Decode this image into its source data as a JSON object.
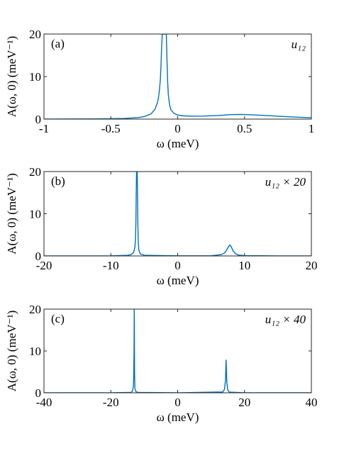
{
  "chart_data": [
    {
      "type": "line",
      "panel": "(a)",
      "annotation": "u₁₂",
      "xlabel": "ω (meV)",
      "ylabel": "A(ω, 0) (meV⁻¹)",
      "xlim": [
        -1,
        1
      ],
      "ylim": [
        0,
        20
      ],
      "xticks": [
        "-1",
        "-0.5",
        "0",
        "0.5",
        "1"
      ],
      "yticks": [
        "0",
        "10",
        "20"
      ],
      "color": "#0072BD",
      "series": [
        {
          "x": [
            -1.0,
            -0.8,
            -0.6,
            -0.4,
            -0.3,
            -0.25,
            -0.2,
            -0.17,
            -0.15,
            -0.14,
            -0.13,
            -0.125,
            -0.12,
            -0.115,
            -0.112,
            -0.108,
            -0.105,
            -0.1,
            -0.095,
            -0.092,
            -0.088,
            -0.085,
            -0.08,
            -0.075,
            -0.07,
            -0.06,
            -0.05,
            -0.03,
            0.0,
            0.05,
            0.1,
            0.2,
            0.3,
            0.4,
            0.45,
            0.5,
            0.6,
            0.7,
            0.8,
            0.9,
            1.0
          ],
          "y": [
            0.0,
            0.02,
            0.05,
            0.15,
            0.35,
            0.6,
            1.2,
            2.3,
            4.0,
            5.8,
            9.0,
            12.5,
            17.0,
            20,
            20,
            20,
            20,
            20,
            20,
            20,
            20,
            20,
            14.0,
            8.8,
            5.8,
            3.2,
            2.2,
            1.4,
            0.95,
            0.75,
            0.7,
            0.72,
            0.85,
            1.05,
            1.1,
            1.08,
            0.95,
            0.78,
            0.6,
            0.45,
            0.32
          ]
        }
      ]
    },
    {
      "type": "line",
      "panel": "(b)",
      "annotation": "u₁₂ × 20",
      "xlabel": "ω (meV)",
      "ylabel": "A(ω, 0) (meV⁻¹)",
      "xlim": [
        -20,
        20
      ],
      "ylim": [
        0,
        20
      ],
      "xticks": [
        "-20",
        "-10",
        "0",
        "10",
        "20"
      ],
      "yticks": [
        "0",
        "10",
        "20"
      ],
      "color": "#0072BD",
      "series": [
        {
          "x": [
            -20,
            -10,
            -7.5,
            -7.0,
            -6.6,
            -6.4,
            -6.3,
            -6.25,
            -6.2,
            -6.15,
            -6.1,
            -6.05,
            -6.0,
            -5.95,
            -5.9,
            -5.8,
            -5.6,
            -5.0,
            0,
            5,
            6.5,
            7.0,
            7.3,
            7.6,
            7.8,
            8.0,
            8.3,
            8.6,
            9.0,
            10,
            15,
            20
          ],
          "y": [
            0,
            0.02,
            0.15,
            0.3,
            0.8,
            2.0,
            4.5,
            8.0,
            15.0,
            20,
            20,
            20,
            14.0,
            7.0,
            3.5,
            1.3,
            0.5,
            0.15,
            0.02,
            0.05,
            0.3,
            0.7,
            1.3,
            2.2,
            2.6,
            2.2,
            1.2,
            0.6,
            0.25,
            0.08,
            0.01,
            0
          ]
        }
      ]
    },
    {
      "type": "line",
      "panel": "(c)",
      "annotation": "u₁₂ × 40",
      "xlabel": "ω (meV)",
      "ylabel": "A(ω, 0) (meV⁻¹)",
      "xlim": [
        -40,
        40
      ],
      "ylim": [
        0,
        20
      ],
      "xticks": [
        "-40",
        "-20",
        "0",
        "20",
        "40"
      ],
      "yticks": [
        "0",
        "10",
        "20"
      ],
      "color": "#0072BD",
      "series": [
        {
          "x": [
            -40,
            -20,
            -14,
            -13.5,
            -13.2,
            -13.05,
            -13.0,
            -12.95,
            -12.9,
            -12.8,
            -12.5,
            -12,
            0,
            13.5,
            14.0,
            14.3,
            14.45,
            14.5,
            14.55,
            14.7,
            15.0,
            15.5,
            20,
            40
          ],
          "y": [
            0,
            0.01,
            0.1,
            0.4,
            2.0,
            10.0,
            20,
            14.0,
            5.0,
            1.0,
            0.3,
            0.1,
            0.0,
            0.2,
            0.8,
            3.0,
            7.0,
            7.9,
            6.5,
            2.5,
            0.6,
            0.15,
            0.01,
            0
          ]
        }
      ]
    }
  ]
}
